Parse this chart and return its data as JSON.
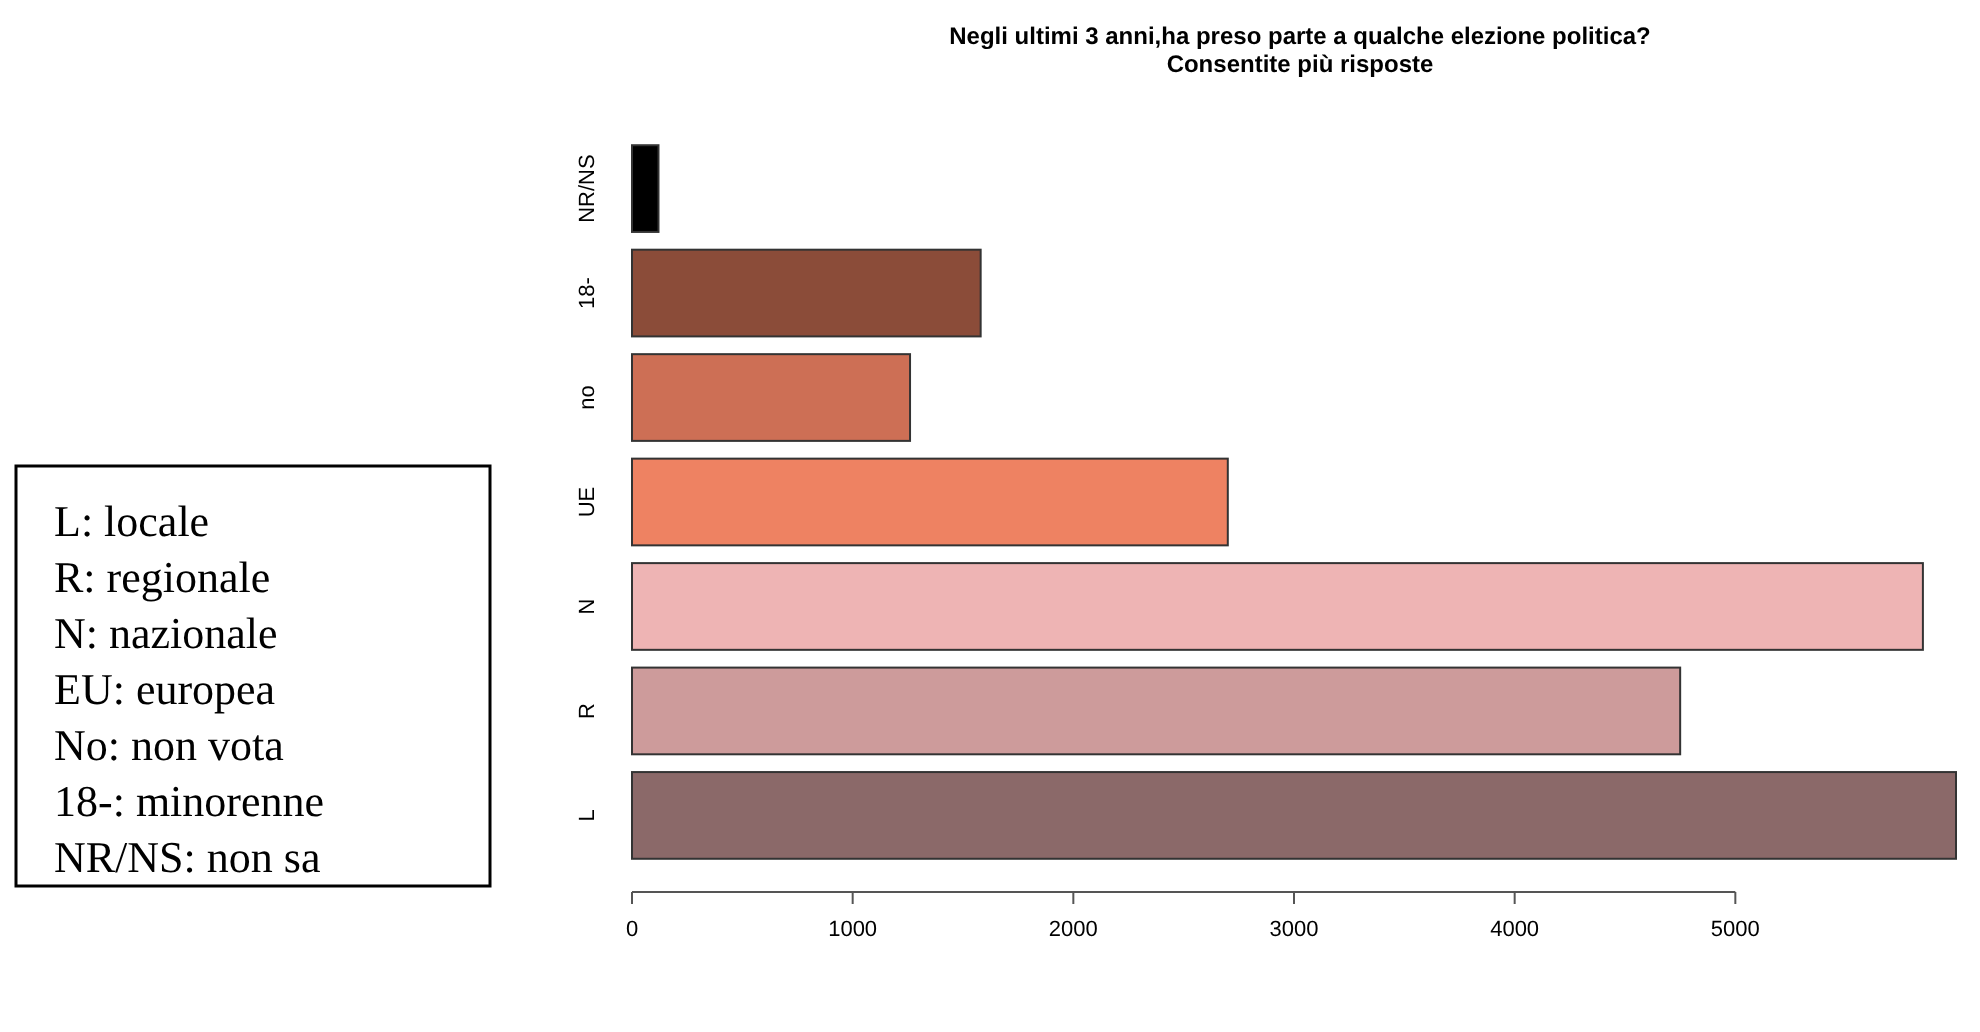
{
  "chart_data": {
    "type": "bar",
    "orientation": "horizontal",
    "title": "Negli ultimi 3 anni,ha preso parte a qualche elezione politica?\nConsentite più risposte",
    "categories": [
      "NR/NS",
      "18-",
      "no",
      "UE",
      "N",
      "R",
      "L"
    ],
    "values": [
      120,
      1580,
      1260,
      2700,
      5850,
      4750,
      6000
    ],
    "colors": [
      "#000000",
      "#8b4c39",
      "#cd6f55",
      "#ee8262",
      "#eeb4b4",
      "#cd9b9b",
      "#8b6969"
    ],
    "xlim": [
      0,
      6000
    ],
    "xticks": [
      0,
      1000,
      2000,
      3000,
      4000,
      5000
    ],
    "grid": false,
    "annotations": [
      "L: locale",
      "R: regionale",
      "N: nazionale",
      "EU: europea",
      "No: non vota",
      "18-: minorenne",
      "NR/NS: non sa"
    ]
  }
}
